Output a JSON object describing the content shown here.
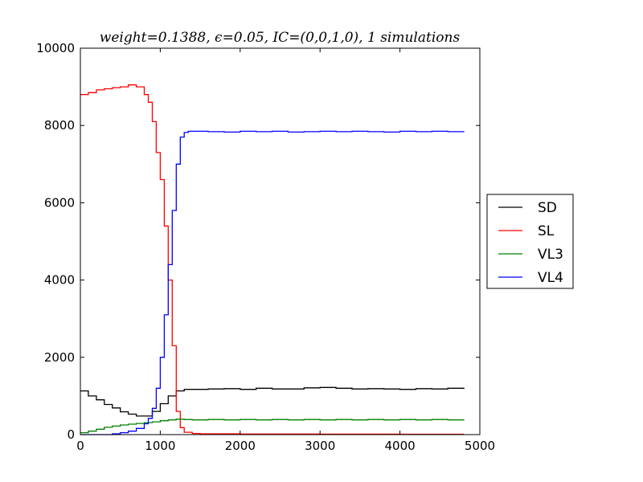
{
  "chart_data": {
    "type": "line",
    "title": "weight=0.1388, ϵ=0.05, IC=(0,0,1,0), 1 simulations",
    "xlabel": "",
    "ylabel": "",
    "xlim": [
      0,
      5000
    ],
    "ylim": [
      0,
      10000
    ],
    "x_ticks": [
      0,
      1000,
      2000,
      3000,
      4000,
      5000
    ],
    "y_ticks": [
      0,
      2000,
      4000,
      6000,
      8000,
      10000
    ],
    "x_tick_labels": [
      "0",
      "1000",
      "2000",
      "3000",
      "4000",
      "5000"
    ],
    "y_tick_labels": [
      "0",
      "2000",
      "4000",
      "6000",
      "8000",
      "10000"
    ],
    "grid": false,
    "legend_position": "outside-right",
    "line_style": "steps",
    "series": [
      {
        "name": "SD",
        "color": "#000000",
        "x": [
          0,
          100,
          200,
          300,
          400,
          500,
          600,
          700,
          800,
          900,
          1000,
          1100,
          1200,
          1300,
          1400,
          1600,
          1800,
          2000,
          2200,
          2400,
          2600,
          2800,
          3000,
          3200,
          3400,
          3600,
          3800,
          4000,
          4200,
          4400,
          4600,
          4800
        ],
        "y": [
          1130,
          1000,
          900,
          780,
          690,
          590,
          530,
          480,
          480,
          600,
          800,
          1000,
          1130,
          1170,
          1170,
          1180,
          1190,
          1170,
          1200,
          1180,
          1180,
          1210,
          1220,
          1200,
          1180,
          1190,
          1180,
          1170,
          1190,
          1180,
          1200,
          1180
        ]
      },
      {
        "name": "SL",
        "color": "#ff0000",
        "x": [
          0,
          100,
          200,
          300,
          400,
          500,
          600,
          700,
          800,
          850,
          900,
          950,
          1000,
          1050,
          1100,
          1150,
          1200,
          1250,
          1300,
          1400,
          1500,
          2000,
          3000,
          4000,
          4800
        ],
        "y": [
          8800,
          8850,
          8920,
          8950,
          8980,
          9000,
          9050,
          9000,
          8800,
          8600,
          8100,
          7300,
          6600,
          5400,
          4000,
          2300,
          600,
          180,
          60,
          30,
          20,
          15,
          12,
          10,
          10
        ]
      },
      {
        "name": "VL3",
        "color": "#008000",
        "x": [
          0,
          100,
          200,
          300,
          400,
          500,
          600,
          700,
          800,
          900,
          1000,
          1100,
          1200,
          1300,
          1400,
          1600,
          1800,
          2000,
          2200,
          2400,
          2600,
          2800,
          3000,
          3200,
          3400,
          3600,
          3800,
          4000,
          4200,
          4400,
          4600,
          4800
        ],
        "y": [
          50,
          90,
          140,
          190,
          220,
          250,
          270,
          290,
          310,
          330,
          360,
          380,
          400,
          390,
          380,
          390,
          380,
          390,
          380,
          390,
          380,
          390,
          380,
          390,
          380,
          390,
          380,
          390,
          380,
          390,
          380,
          390
        ]
      },
      {
        "name": "VL4",
        "color": "#0000ff",
        "x": [
          0,
          200,
          400,
          500,
          600,
          700,
          800,
          850,
          900,
          950,
          1000,
          1050,
          1100,
          1150,
          1200,
          1250,
          1300,
          1350,
          1400,
          1600,
          1800,
          2000,
          2200,
          2400,
          2600,
          2800,
          3000,
          3200,
          3400,
          3600,
          3800,
          4000,
          4200,
          4400,
          4600,
          4800
        ],
        "y": [
          0,
          0,
          20,
          50,
          90,
          160,
          280,
          420,
          680,
          1200,
          2000,
          3100,
          4400,
          5800,
          7000,
          7700,
          7820,
          7850,
          7850,
          7840,
          7830,
          7850,
          7840,
          7850,
          7830,
          7840,
          7850,
          7840,
          7850,
          7840,
          7830,
          7850,
          7840,
          7850,
          7840,
          7830
        ]
      }
    ]
  }
}
